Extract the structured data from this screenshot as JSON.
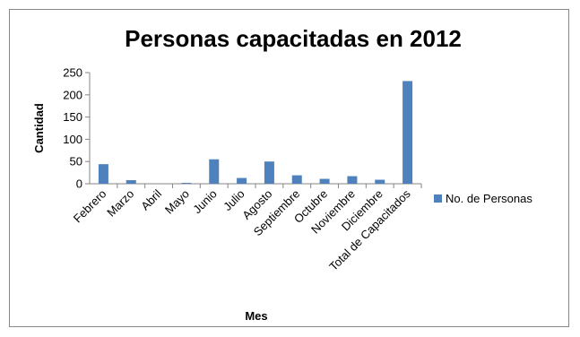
{
  "chart_data": {
    "type": "bar",
    "title": "Personas capacitadas en 2012",
    "xlabel": "Mes",
    "ylabel": "Cantidad",
    "categories": [
      "Febrero",
      "Marzo",
      "Abril",
      "Mayo",
      "Junio",
      "Julio",
      "Agosto",
      "Septiembre",
      "Octubre",
      "Noviembre",
      "Diciembre",
      "Total de Capacitados"
    ],
    "series": [
      {
        "name": "No. de Personas",
        "color": "#4F81BD",
        "values": [
          44,
          8,
          0,
          2,
          55,
          13,
          50,
          19,
          11,
          17,
          9,
          231
        ]
      }
    ],
    "ylim": [
      0,
      250
    ],
    "yticks": [
      "0",
      "50",
      "100",
      "150",
      "200",
      "250"
    ],
    "grid": false,
    "legend": "right"
  }
}
